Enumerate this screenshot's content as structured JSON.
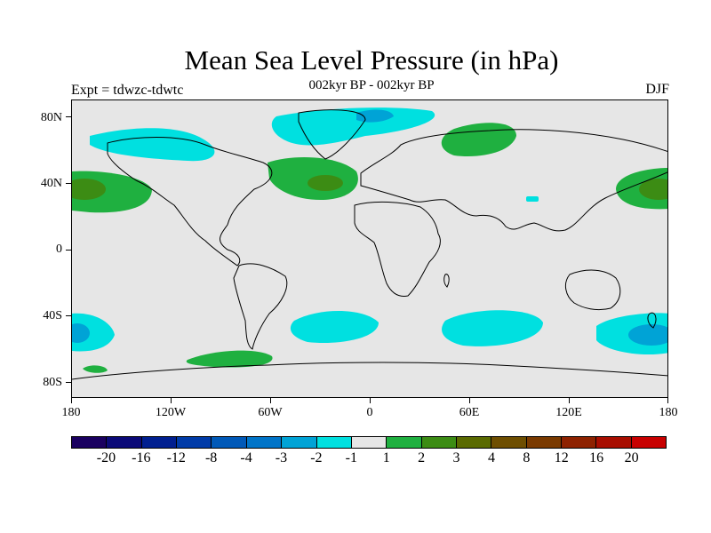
{
  "title": "Mean Sea Level Pressure (in hPa)",
  "subtitle": "002kyr BP - 002kyr BP",
  "experiment": "Expt = tdwzc-tdwtc",
  "season": "DJF",
  "map": {
    "lat_labels": [
      "80N",
      "40N",
      "0",
      "40S",
      "80S"
    ],
    "lon_labels": [
      "180",
      "120W",
      "60W",
      "0",
      "60E",
      "120E",
      "180"
    ]
  },
  "colorbar": {
    "colors": [
      "#1a0060",
      "#0b0a78",
      "#001f90",
      "#003ba8",
      "#0059b8",
      "#0074c8",
      "#00a3d6",
      "#00e0e0",
      "#e6e6e6",
      "#1fb040",
      "#3c8c14",
      "#5a6a00",
      "#6e4e00",
      "#7a3a00",
      "#8e2200",
      "#a80e00",
      "#c80000"
    ],
    "labels": [
      "-20",
      "-16",
      "-12",
      "-8",
      "-4",
      "-3",
      "-2",
      "-1",
      "1",
      "2",
      "3",
      "4",
      "8",
      "12",
      "16",
      "20"
    ]
  },
  "colors": {
    "background": "#e6e6e6",
    "positive_1": "#1fb040",
    "positive_2": "#3c8c14",
    "negative_1": "#00e0e0",
    "negative_2": "#00a3d6",
    "negative_3": "#0074c8"
  }
}
